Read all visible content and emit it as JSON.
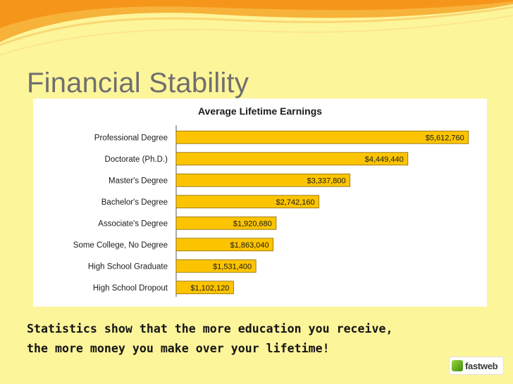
{
  "slide": {
    "title": "Financial Stability",
    "caption_lines": [
      "Statistics show that the more education you receive,",
      "the more money you make over your lifetime!"
    ],
    "logo_text": "fastweb"
  },
  "colors": {
    "background": "#fdf59a",
    "bar_fill": "#fcc400",
    "bar_stroke": "#8a6a00",
    "swoosh": "#f5a11e"
  },
  "chart_data": {
    "type": "bar",
    "orientation": "horizontal",
    "title": "Average Lifetime Earnings",
    "categories": [
      "Professional Degree",
      "Doctorate (Ph.D.)",
      "Master's Degree",
      "Bachelor's Degree",
      "Associate's Degree",
      "Some College, No Degree",
      "High School Graduate",
      "High School Dropout"
    ],
    "values": [
      5612760,
      4449440,
      3337800,
      2742160,
      1920680,
      1863040,
      1531400,
      1102120
    ],
    "data_labels": [
      "$5,612,760",
      "$4,449,440",
      "$3,337,800",
      "$2,742,160",
      "$1,920,680",
      "$1,863,040",
      "$1,531,400",
      "$1,102,120"
    ],
    "xlim": [
      0,
      5900000
    ],
    "grid": false,
    "legend": "none"
  }
}
